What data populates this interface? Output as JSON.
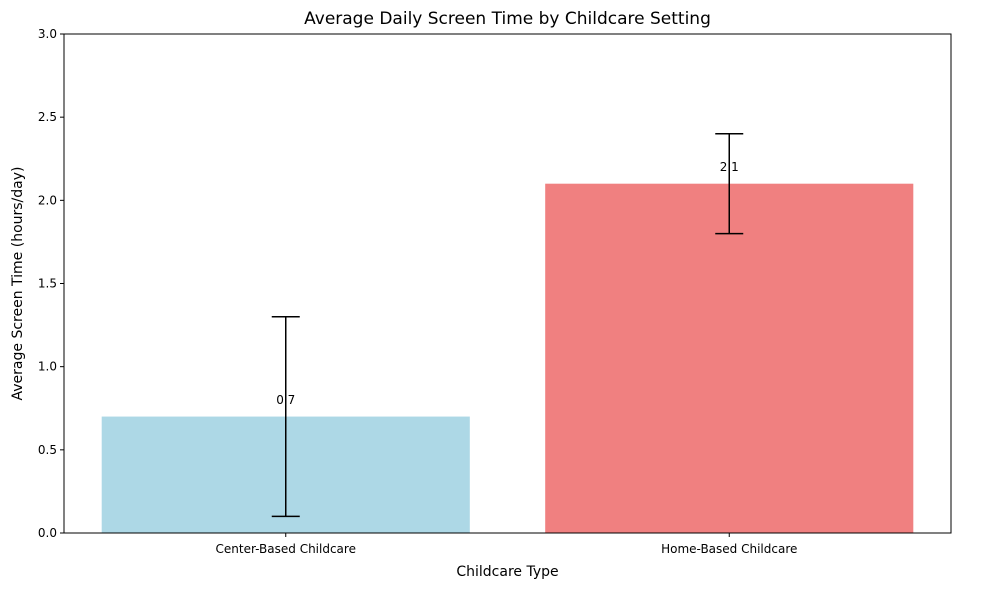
{
  "chart_data": {
    "type": "bar",
    "title": "Average Daily Screen Time by Childcare Setting",
    "xlabel": "Childcare Type",
    "ylabel": "Average Screen Time (hours/day)",
    "categories": [
      "Center-Based Childcare",
      "Home-Based Childcare"
    ],
    "values": [
      0.7,
      2.1
    ],
    "value_labels": [
      "0.7",
      "2.1"
    ],
    "error": [
      0.6,
      0.3
    ],
    "colors": [
      "#add8e6",
      "#f08080"
    ],
    "ylim": [
      0,
      3.0
    ],
    "yticks": [
      0.0,
      0.5,
      1.0,
      1.5,
      2.0,
      2.5,
      3.0
    ],
    "ytick_labels": [
      "0.0",
      "0.5",
      "1.0",
      "1.5",
      "2.0",
      "2.5",
      "3.0"
    ],
    "grid": false,
    "legend": "none"
  }
}
